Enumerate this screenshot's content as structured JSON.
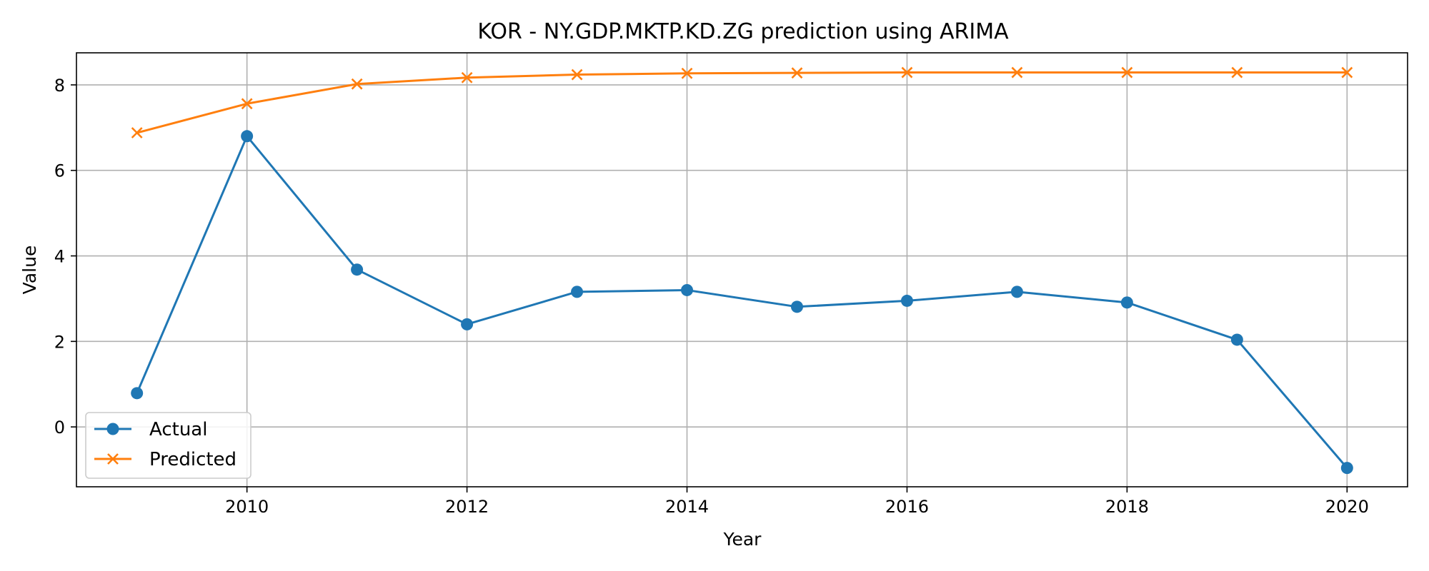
{
  "chart_data": {
    "type": "line",
    "title": "KOR - NY.GDP.MKTP.KD.ZG prediction using ARIMA",
    "xlabel": "Year",
    "ylabel": "Value",
    "xlim": [
      2008.45,
      2020.55
    ],
    "ylim": [
      -1.4,
      8.75
    ],
    "xticks": [
      2010,
      2012,
      2014,
      2016,
      2018,
      2020
    ],
    "yticks": [
      0,
      2,
      4,
      6,
      8
    ],
    "grid": true,
    "legend_position": "lower-left",
    "x": [
      2009,
      2010,
      2011,
      2012,
      2013,
      2014,
      2015,
      2016,
      2017,
      2018,
      2019,
      2020
    ],
    "series": [
      {
        "name": "Actual",
        "color": "#1f77b4",
        "marker": "circle",
        "values": [
          0.79,
          6.8,
          3.68,
          2.4,
          3.16,
          3.2,
          2.81,
          2.95,
          3.16,
          2.91,
          2.04,
          -0.96
        ]
      },
      {
        "name": "Predicted",
        "color": "#ff7f0e",
        "marker": "x",
        "values": [
          6.88,
          7.56,
          8.02,
          8.17,
          8.24,
          8.27,
          8.28,
          8.29,
          8.29,
          8.29,
          8.29,
          8.29
        ]
      }
    ]
  }
}
